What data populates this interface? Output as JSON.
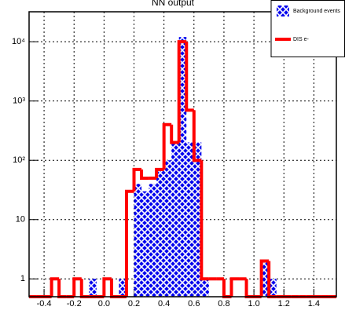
{
  "chart_data": {
    "type": "histogram",
    "title": "NN output",
    "bins": [
      -0.5,
      -0.45,
      -0.4,
      -0.35,
      -0.3,
      -0.25,
      -0.2,
      -0.15,
      -0.1,
      -0.05,
      0,
      0.05,
      0.1,
      0.15,
      0.2,
      0.25,
      0.3,
      0.35,
      0.4,
      0.45,
      0.5,
      0.55,
      0.6,
      0.65,
      0.7,
      0.75,
      0.8,
      0.85,
      0.9,
      0.95,
      1,
      1.05,
      1.1,
      1.15,
      1.2,
      1.25,
      1.3,
      1.35,
      1.4,
      1.45,
      1.5,
      1.55
    ],
    "series": [
      {
        "name": "Background events",
        "color": "#0000ee",
        "style": "hatched",
        "values": [
          0,
          0,
          0,
          0,
          0,
          0,
          0,
          0,
          1,
          0,
          0,
          0,
          1,
          0,
          40,
          30,
          40,
          70,
          100,
          200,
          12000,
          200,
          200,
          1,
          0,
          0,
          0,
          0,
          0,
          0,
          0,
          2,
          1,
          0,
          0,
          0,
          0,
          0,
          0,
          0,
          0
        ]
      },
      {
        "name": "DIS e-",
        "color": "#ff0000",
        "style": "step",
        "values": [
          0,
          0,
          0,
          1,
          0,
          0,
          1,
          0,
          0,
          0,
          1,
          0,
          0,
          30,
          70,
          50,
          50,
          70,
          400,
          200,
          10000,
          700,
          100,
          1,
          1,
          1,
          0,
          1,
          1,
          0,
          0,
          2,
          0,
          0,
          0,
          0,
          0,
          0,
          0,
          0,
          0
        ]
      }
    ],
    "xlim": [
      -0.5,
      1.55
    ],
    "xticks": [
      -0.4,
      -0.2,
      {
        "value": 0,
        "label": "0.0"
      },
      0.2,
      0.4,
      0.6,
      0.8,
      {
        "value": 1,
        "label": "1.0"
      },
      1.2,
      1.4
    ],
    "ylim": [
      0.5,
      32000
    ],
    "log_y": true,
    "yticks": [
      1,
      10,
      {
        "value": 100,
        "label": "10²"
      },
      {
        "value": 1000,
        "label": "10³"
      },
      {
        "value": 10000,
        "label": "10⁴"
      }
    ],
    "grid": true,
    "legend": "top-right"
  }
}
